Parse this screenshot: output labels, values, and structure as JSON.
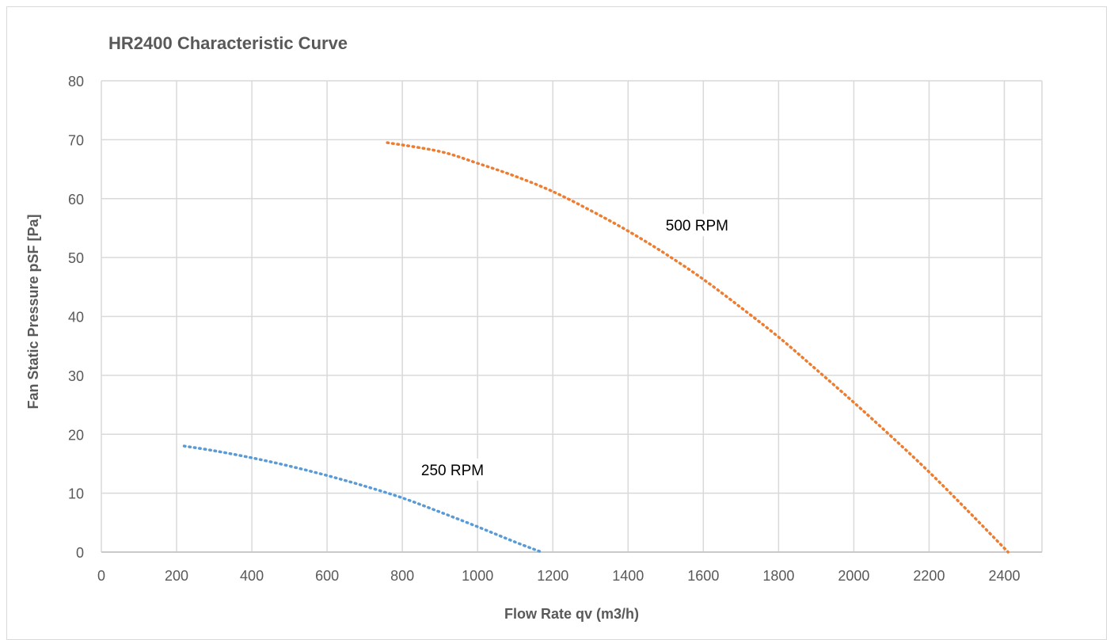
{
  "chart_data": {
    "type": "line",
    "title": "HR2400 Characteristic Curve",
    "xlabel": "Flow Rate qv (m3/h)",
    "ylabel": "Fan Static Pressure pSF [Pa]",
    "xlim": [
      0,
      2500
    ],
    "ylim": [
      0,
      80
    ],
    "xticks": [
      0,
      200,
      400,
      600,
      800,
      1000,
      1200,
      1400,
      1600,
      1800,
      2000,
      2200,
      2400
    ],
    "yticks": [
      0,
      10,
      20,
      30,
      40,
      50,
      60,
      70,
      80
    ],
    "grid": true,
    "legend": "none",
    "series": [
      {
        "name": "250 RPM",
        "color": "#5b9bd5",
        "line_style": "dotted",
        "x": [
          220,
          300,
          400,
          500,
          600,
          700,
          800,
          900,
          1000,
          1100,
          1170
        ],
        "y": [
          18,
          17.2,
          16,
          14.6,
          13,
          11.2,
          9.2,
          6.8,
          4.3,
          1.7,
          0
        ]
      },
      {
        "name": "500 RPM",
        "color": "#ed7d31",
        "line_style": "dotted",
        "x": [
          760,
          900,
          1000,
          1100,
          1200,
          1300,
          1400,
          1500,
          1600,
          1700,
          1800,
          1900,
          2000,
          2100,
          2200,
          2300,
          2410
        ],
        "y": [
          69.5,
          68,
          66,
          63.8,
          61.2,
          58,
          54.5,
          50.6,
          46.3,
          41.5,
          36.5,
          31,
          25.4,
          19.6,
          13.6,
          7.2,
          0
        ]
      }
    ]
  }
}
